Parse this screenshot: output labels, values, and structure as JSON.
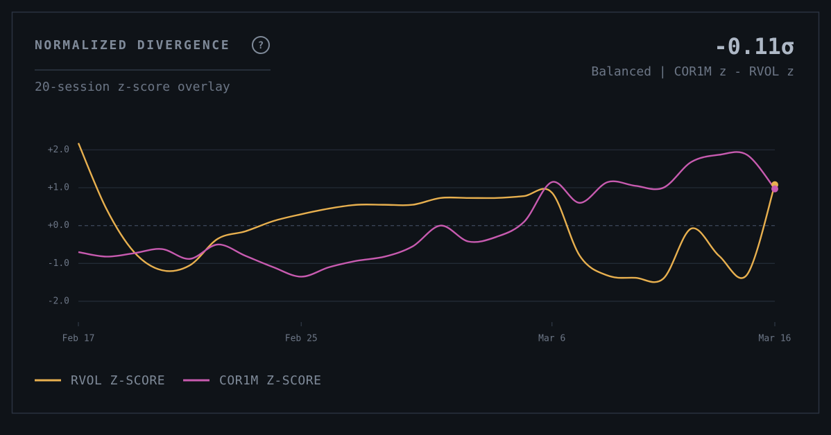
{
  "header": {
    "title": "NORMALIZED DIVERGENCE",
    "help": "?",
    "subtitle": "20-session z-score overlay",
    "value": "-0.11σ",
    "value_caption": "Balanced | COR1M z - RVOL z"
  },
  "chart_data": {
    "type": "line",
    "categories": [
      "Feb 17",
      null,
      null,
      null,
      null,
      null,
      null,
      null,
      "Feb 25",
      null,
      null,
      null,
      null,
      null,
      null,
      null,
      null,
      "Mar 6",
      null,
      null,
      null,
      null,
      null,
      null,
      null,
      "Mar 16"
    ],
    "series": [
      {
        "name": "RVOL Z-SCORE",
        "color": "#e8b04f",
        "values": [
          2.18,
          0.45,
          -0.7,
          -1.18,
          -1.05,
          -0.35,
          -0.15,
          0.12,
          0.3,
          0.45,
          0.55,
          0.55,
          0.55,
          0.73,
          0.73,
          0.73,
          0.78,
          0.87,
          -0.8,
          -1.32,
          -1.38,
          -1.4,
          -0.08,
          -0.8,
          -1.3,
          1.08
        ]
      },
      {
        "name": "COR1M Z-SCORE",
        "color": "#c85bb0",
        "values": [
          -0.7,
          -0.82,
          -0.73,
          -0.62,
          -0.88,
          -0.5,
          -0.8,
          -1.1,
          -1.35,
          -1.1,
          -0.93,
          -0.82,
          -0.55,
          0,
          -0.42,
          -0.3,
          0.1,
          1.15,
          0.6,
          1.15,
          1.05,
          1.0,
          1.68,
          1.87,
          1.87,
          0.97
        ]
      }
    ],
    "ylim": [
      -2.55,
      2.3
    ],
    "yticks": [
      {
        "value": 2,
        "label": "+2.0"
      },
      {
        "value": 1,
        "label": "+1.0"
      },
      {
        "value": 0,
        "label": "+0.0"
      },
      {
        "value": -1,
        "label": "-1.0"
      },
      {
        "value": -2,
        "label": "-2.0"
      }
    ],
    "grid": true
  }
}
